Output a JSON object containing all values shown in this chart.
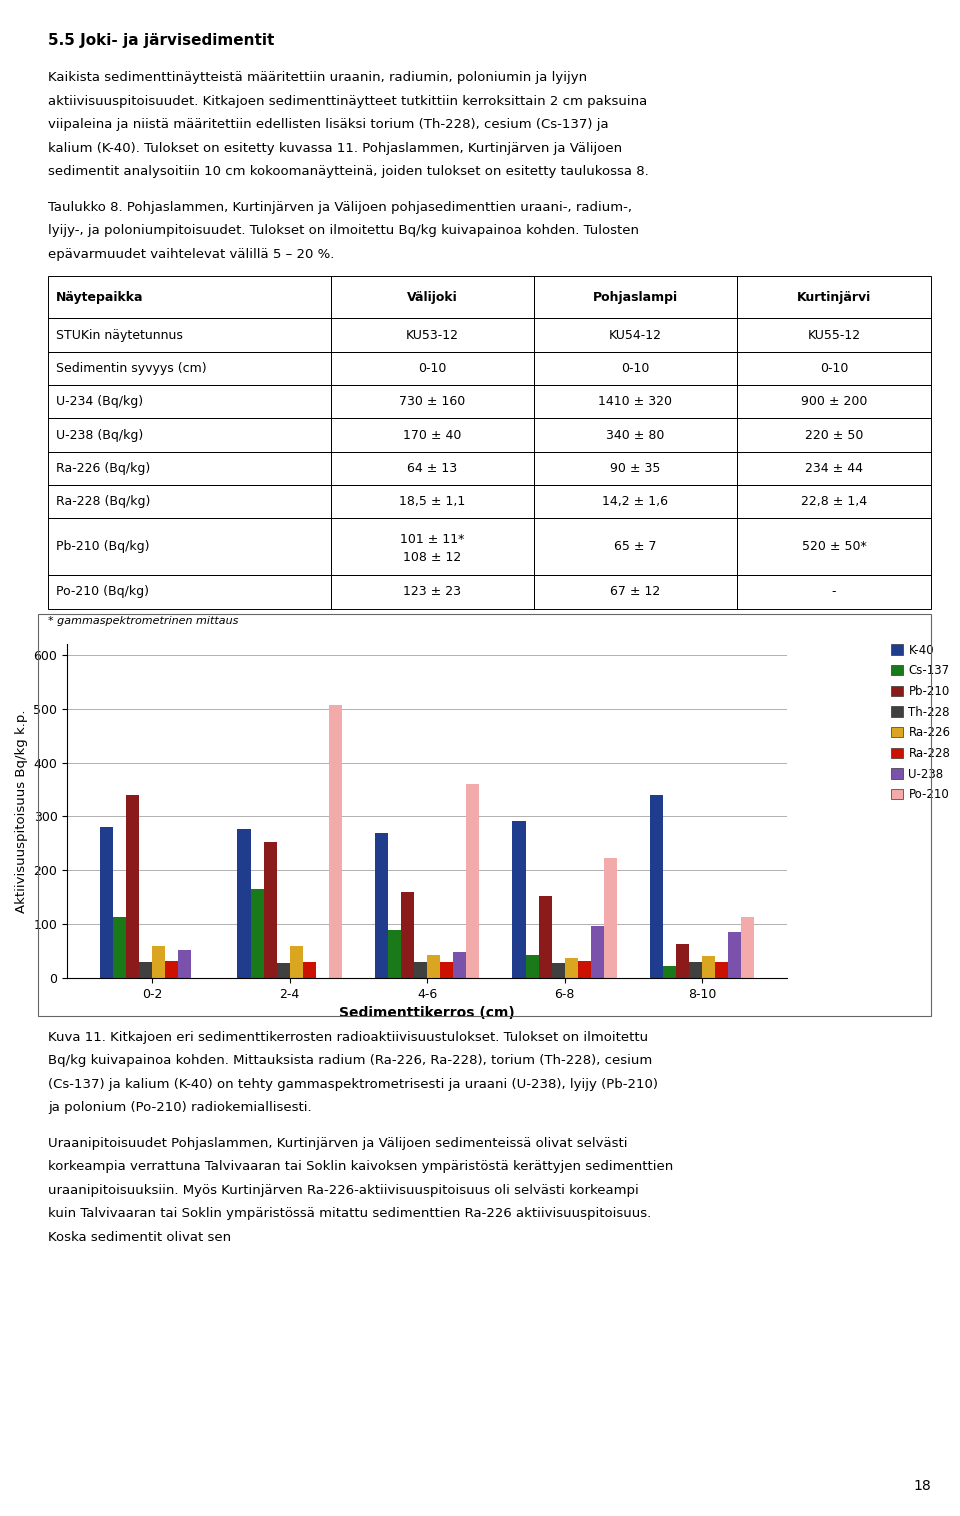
{
  "page_width": 9.6,
  "page_height": 15.16,
  "dpi": 100,
  "bg_color": "#FFFFFF",
  "text_color": "#000000",
  "heading": "5.5 Joki- ja järvisedimentit",
  "para1": "Kaikista sedimenttinäytteistä määritettiin uraanin, radiumin, poloniumin ja lyijyn aktiivisuuspitoisuudet. Kitkajoen sedimenttinäytteet tutkittiin kerroksittain 2 cm paksuina viipaleina ja niistä määritettiin edellisten lisäksi torium (Th-228), cesium (Cs-137) ja kalium (K-40). Tulokset on esitetty kuvassa 11. Pohjaslammen, Kurtinjärven ja Välijoen sedimentit analysoitiin 10 cm kokoomanäytteinä, joiden tulokset on esitetty taulukossa 8.",
  "para2": "Taulukko 8. Pohjaslammen, Kurtinjärven ja Välijoen pohjasedimenttien uraani-, radium-, lyijy-, ja poloniumpitoisuudet. Tulokset on ilmoitettu Bq/kg kuivapainoa kohden. Tulosten epävarmuudet vaihtelevat välillä 5 – 20 %.",
  "table_headers": [
    "Näytepaikka",
    "Välijoki",
    "Pohjaslampi",
    "Kurtinjärvi"
  ],
  "table_rows": [
    [
      "STUKin näytetunnus",
      "KU53-12",
      "KU54-12",
      "KU55-12"
    ],
    [
      "Sedimentin syvyys (cm)",
      "0-10",
      "0-10",
      "0-10"
    ],
    [
      "U-234 (Bq/kg)",
      "730 ± 160",
      "1410 ± 320",
      "900 ± 200"
    ],
    [
      "U-238 (Bq/kg)",
      "170 ± 40",
      "340 ± 80",
      "220 ± 50"
    ],
    [
      "Ra-226 (Bq/kg)",
      "64 ± 13",
      "90 ± 35",
      "234 ± 44"
    ],
    [
      "Ra-228 (Bq/kg)",
      "18,5 ± 1,1",
      "14,2 ± 1,6",
      "22,8 ± 1,4"
    ],
    [
      "Pb-210 (Bq/kg)",
      "101 ± 11*\n108 ± 12",
      "65 ± 7",
      "520 ± 50*"
    ],
    [
      "Po-210 (Bq/kg)",
      "123 ± 23",
      "67 ± 12",
      "-"
    ]
  ],
  "footnote": "* gammaspektrometrinen mittaus",
  "chart_categories": [
    "0-2",
    "2-4",
    "4-6",
    "6-8",
    "8-10"
  ],
  "chart_series": [
    {
      "label": "K-40",
      "color": "#1F3D8C",
      "values": [
        280,
        277,
        270,
        292,
        340
      ]
    },
    {
      "label": "Cs-137",
      "color": "#1A7A1A",
      "values": [
        113,
        165,
        88,
        42,
        22
      ]
    },
    {
      "label": "Pb-210",
      "color": "#8B1A1A",
      "values": [
        340,
        253,
        160,
        153,
        62
      ]
    },
    {
      "label": "Th-228",
      "color": "#404040",
      "values": [
        30,
        28,
        30,
        27,
        30
      ]
    },
    {
      "label": "Ra-226",
      "color": "#DAA520",
      "values": [
        60,
        60,
        42,
        37,
        40
      ]
    },
    {
      "label": "Ra-228",
      "color": "#CC1100",
      "values": [
        32,
        30,
        30,
        32,
        30
      ]
    },
    {
      "label": "U-238",
      "color": "#7B52AB",
      "values": [
        52,
        0,
        48,
        96,
        85
      ]
    },
    {
      "label": "Po-210",
      "color": "#F2AAAA",
      "values": [
        0,
        507,
        360,
        222,
        113
      ]
    }
  ],
  "chart_ylabel": "Aktiivisuuspitoisuus Bq/kg k.p.",
  "chart_xlabel": "Sedimenttikerros (cm)",
  "chart_ylim": [
    0,
    620
  ],
  "chart_yticks": [
    0,
    100,
    200,
    300,
    400,
    500,
    600
  ],
  "caption": "Kuva 11. Kitkajoen eri sedimenttikerrosten radioaktiivisuustulokset. Tulokset on ilmoitettu Bq/kg kuivapainoa kohden. Mittauksista radium (Ra-226, Ra-228), torium (Th-228), cesium (Cs-137) ja kalium (K-40) on tehty gammaspektrometrisesti ja uraani (U-238), lyijy (Pb-210) ja polonium (Po-210) radiokemiallisesti.",
  "para3": "Uraanipitoisuudet Pohjaslammen, Kurtinjärven ja Välijoen sedimenteissä olivat selvästi korkeampia verrattuna Talvivaaran tai Soklin kaivoksen ympäristöstä kerättyjen sedimenttien uraanipitoisuuksiin. Myös Kurtinjärven Ra-226-aktiivisuuspitoisuus oli selvästi korkeampi kuin Talvivaaran tai Soklin ympäristössä mitattu sedimenttien Ra-226 aktiivisuuspitoisuus. Koska sedimentit olivat sen",
  "page_number": "18"
}
